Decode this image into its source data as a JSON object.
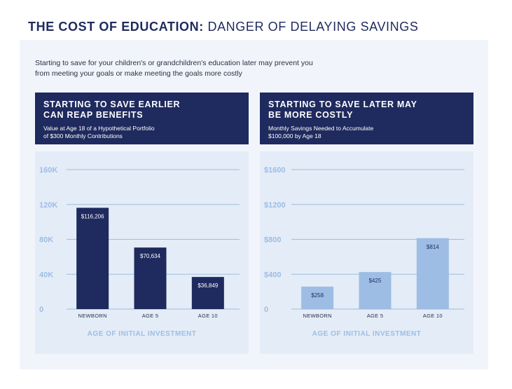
{
  "title": {
    "bold": "THE COST OF EDUCATION:",
    "light": "DANGER OF DELAYING SAVINGS"
  },
  "intro": {
    "line1": "Starting to save for your children's or grandchildren's education later may prevent you",
    "line2": "from meeting your goals or make meeting the goals more costly"
  },
  "panels": [
    {
      "heading_line1": "STARTING TO SAVE EARLIER",
      "heading_line2": "CAN REAP BENEFITS",
      "sub_line1": "Value at Age 18 of a Hypothetical Portfolio",
      "sub_line2": "of $300 Monthly Contributions"
    },
    {
      "heading_line1": "STARTING TO SAVE LATER MAY",
      "heading_line2": "BE MORE COSTLY",
      "sub_line1": "Monthly Savings Needed to Accumulate",
      "sub_line2": "$100,000 by Age 18"
    }
  ],
  "colors": {
    "title": "#1f2a5e",
    "header_bg": "#1f2a5e",
    "panel_bg": "#f1f5fb",
    "chart_bg": "#e4ecf7",
    "bar_dark": "#1f2a5e",
    "bar_light": "#9dbde4",
    "axis_label": "#9dbde4",
    "gridline": "#9dbde4"
  },
  "chart_data": [
    {
      "type": "bar",
      "title": "",
      "xlabel": "AGE OF INITIAL INVESTMENT",
      "ylabel": "",
      "categories": [
        "NEWBORN",
        "AGE 5",
        "AGE 10"
      ],
      "values": [
        116206,
        70634,
        36849
      ],
      "value_labels": [
        "$116,206",
        "$70,634",
        "$36,849"
      ],
      "ylim": [
        0,
        160000
      ],
      "yticks": [
        0,
        40000,
        80000,
        120000,
        160000
      ],
      "ytick_labels": [
        "0",
        "40K",
        "80K",
        "120K",
        "160K"
      ],
      "bar_color": "#1f2a5e",
      "label_color": "#ffffff",
      "grid": true
    },
    {
      "type": "bar",
      "title": "",
      "xlabel": "AGE OF INITIAL INVESTMENT",
      "ylabel": "",
      "categories": [
        "NEWBORN",
        "AGE 5",
        "AGE 10"
      ],
      "values": [
        258,
        425,
        814
      ],
      "value_labels": [
        "$258",
        "$425",
        "$814"
      ],
      "ylim": [
        0,
        1600
      ],
      "yticks": [
        0,
        400,
        800,
        1200,
        1600
      ],
      "ytick_labels": [
        "0",
        "$400",
        "$800",
        "$1200",
        "$1600"
      ],
      "bar_color": "#9dbde4",
      "label_color": "#1f2a5e",
      "grid": true
    }
  ]
}
